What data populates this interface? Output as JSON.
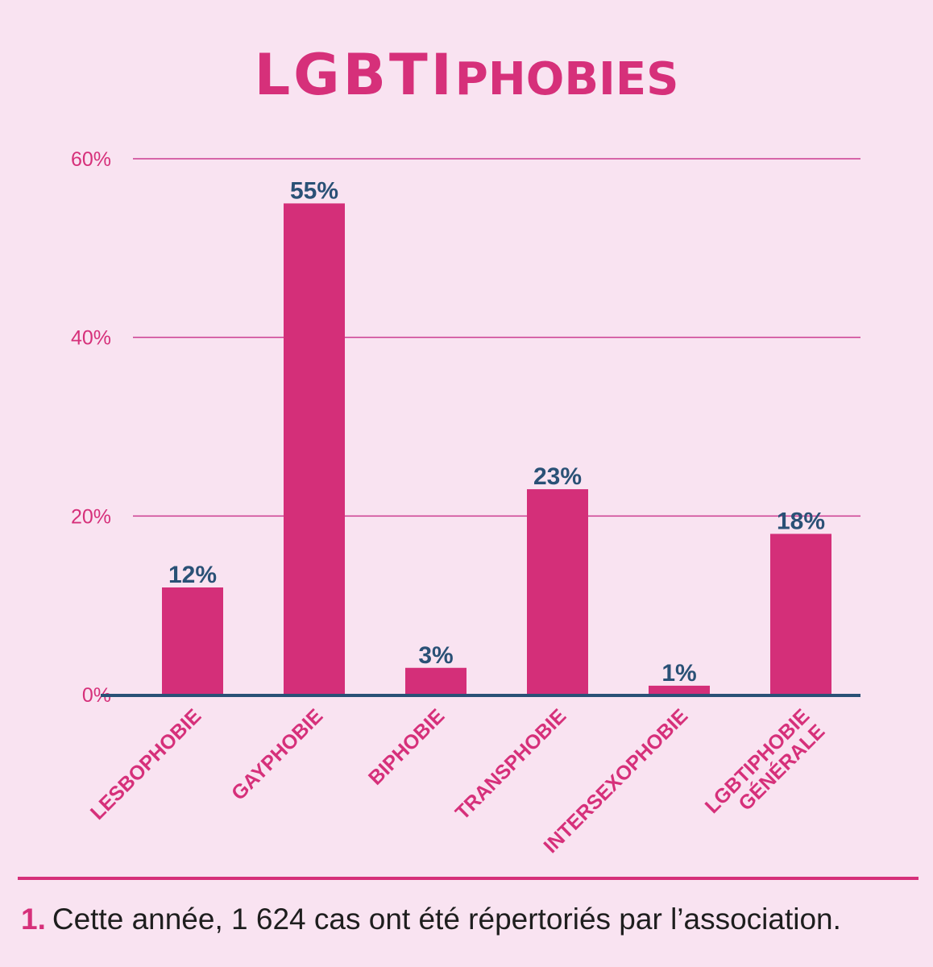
{
  "header": {
    "title_part1": "LGBTI",
    "title_part2": "PHOBIES"
  },
  "chart_data": {
    "type": "bar",
    "categories": [
      "LESBOPHOBIE",
      "GAYPHOBIE",
      "BIPHOBIE",
      "TRANSPHOBIE",
      "INTERSEXOPHOBIE",
      "LGBTIPHOBIE GÉNÉRALE"
    ],
    "category_lines": [
      [
        "LESBOPHOBIE"
      ],
      [
        "GAYPHOBIE"
      ],
      [
        "BIPHOBIE"
      ],
      [
        "TRANSPHOBIE"
      ],
      [
        "INTERSEXOPHOBIE"
      ],
      [
        "LGBTIPHOBIE",
        "GÉNÉRALE"
      ]
    ],
    "values": [
      12,
      55,
      3,
      23,
      1,
      18
    ],
    "value_labels": [
      "12%",
      "55%",
      "3%",
      "23%",
      "1%",
      "18%"
    ],
    "yticks": [
      0,
      20,
      40,
      60
    ],
    "ytick_labels": [
      "0%",
      "20%",
      "40%",
      "60%"
    ],
    "ylim": [
      0,
      60
    ],
    "grid": true,
    "colors": {
      "bar": "#d42f79",
      "gridline": "#cc3d91",
      "axis": "#2a5176",
      "value_label": "#2a5176",
      "tick_label": "#d6307a",
      "category_label": "#d6307a"
    }
  },
  "footnote": {
    "number": "1.",
    "text": "Cette année, 1 624 cas ont été répertoriés par l’association."
  }
}
